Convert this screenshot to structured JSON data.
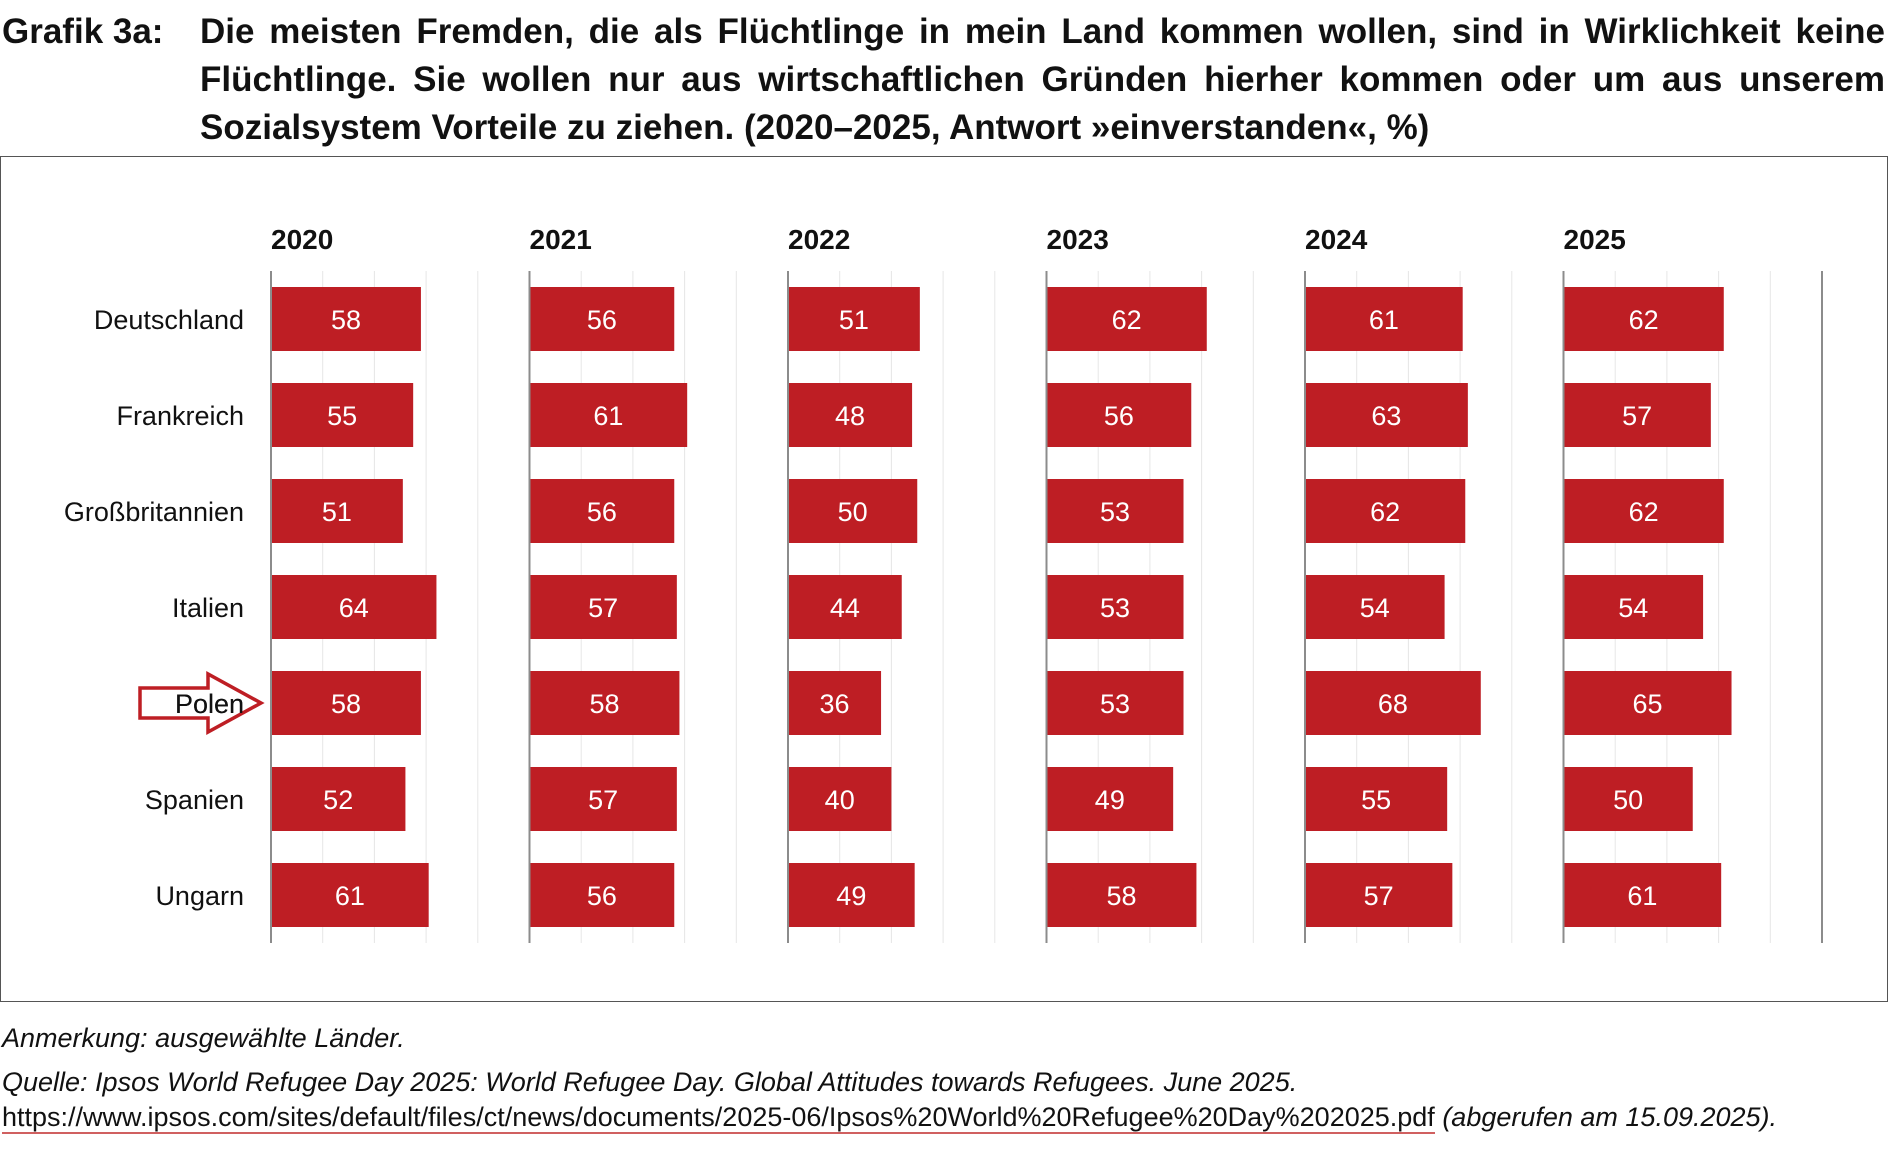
{
  "figure_label": "Grafik 3a:",
  "title": "Die meisten Fremden, die als Flüchtlinge in mein Land kommen wollen, sind in Wirklichkeit keine Flüchtlinge. Sie wollen nur aus wirtschaftlichen Gründen hierher kommen oder um aus unserem Sozialsystem Vorteile zu ziehen. (2020–2025, Antwort »einverstanden«, %)",
  "note": "Anmerkung: ausgewählte Länder.",
  "source": {
    "text": "Quelle: Ipsos World Refugee Day 2025: World Refugee Day. Global Attitudes towards Refugees. June 2025.",
    "url": "https://www.ipsos.com/sites/default/files/ct/news/documents/2025-06/Ipsos%20World%20Refugee%20Day%202025.pdf",
    "accessed": "(abgerufen am 15.09.2025)."
  },
  "chart_data": {
    "type": "bar",
    "orientation": "horizontal",
    "panels": "small-multiples",
    "categories": [
      "Deutschland",
      "Frankreich",
      "Großbritannien",
      "Italien",
      "Polen",
      "Spanien",
      "Ungarn"
    ],
    "highlighted_category": "Polen",
    "series": [
      {
        "name": "2020",
        "values": [
          58,
          55,
          51,
          64,
          58,
          52,
          61
        ]
      },
      {
        "name": "2021",
        "values": [
          56,
          61,
          56,
          57,
          58,
          57,
          56
        ]
      },
      {
        "name": "2022",
        "values": [
          51,
          48,
          50,
          44,
          36,
          40,
          49
        ]
      },
      {
        "name": "2023",
        "values": [
          62,
          56,
          53,
          53,
          53,
          49,
          58
        ]
      },
      {
        "name": "2024",
        "values": [
          61,
          63,
          62,
          54,
          68,
          55,
          57
        ]
      },
      {
        "name": "2025",
        "values": [
          62,
          57,
          62,
          54,
          65,
          50,
          61
        ]
      }
    ],
    "xlim": [
      0,
      100
    ],
    "grid": true,
    "bar_color": "#be1e24",
    "label_color": "#ffffff",
    "arrow_color": "#be1e24"
  }
}
